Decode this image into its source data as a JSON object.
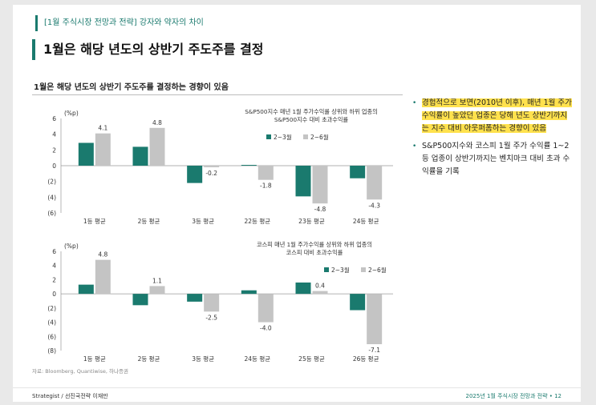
{
  "header": {
    "tag": "[1월 주식시장 전망과 전략]",
    "tag_sub": "강자와 약자의 차이",
    "title": "1월은 해당 년도의 상반기 주도주를 결정"
  },
  "subtitle": "1월은 해당 년도의 상반기 주도주를 결정하는 경향이 있음",
  "colors": {
    "accent": "#1a7a6e",
    "gray_bar": "#c4c4c4",
    "highlight": "#ffe14d"
  },
  "chart_data": [
    {
      "type": "bar",
      "unit": "(%p)",
      "title": "S&P500지수 매년 1월 주가수익률 상위와 하위 업종의\nS&P500지수 대비 초과수익률",
      "categories": [
        "1등 평균",
        "2등 평균",
        "3등 평균",
        "22등 평균",
        "23등 평균",
        "24등 평균"
      ],
      "series": [
        {
          "name": "2~3월",
          "values": [
            2.9,
            2.4,
            -2.2,
            0.1,
            -3.9,
            -1.6
          ]
        },
        {
          "name": "2~6월",
          "values": [
            4.1,
            4.8,
            -0.2,
            -1.8,
            -4.8,
            -4.3
          ]
        }
      ],
      "labels": [
        "4.1",
        "4.8",
        "-0.2",
        "-1.8",
        "-4.8",
        "-4.3"
      ],
      "yticks": [
        6,
        4,
        2,
        0,
        -2,
        -4,
        -6
      ],
      "ytick_labels": [
        "6",
        "4",
        "2",
        "0",
        "(2)",
        "(4)",
        "(6)"
      ],
      "ylim": [
        -6,
        6
      ],
      "legend": "top-right"
    },
    {
      "type": "bar",
      "unit": "(%p)",
      "title": "코스피 매년 1월 주가수익률 상위와 하위 업종의\n코스피 대비 초과수익률",
      "categories": [
        "1등 평균",
        "2등 평균",
        "3등 평균",
        "24등 평균",
        "25등 평균",
        "26등 평균"
      ],
      "series": [
        {
          "name": "2~3월",
          "values": [
            1.3,
            -1.6,
            -1.1,
            0.5,
            1.6,
            -2.3
          ]
        },
        {
          "name": "2~6월",
          "values": [
            4.8,
            1.1,
            -2.5,
            -4.0,
            0.4,
            -7.1
          ]
        }
      ],
      "labels": [
        "4.8",
        "1.1",
        "-2.5",
        "-4.0",
        "0.4",
        "-7.1"
      ],
      "yticks": [
        6,
        4,
        2,
        0,
        -2,
        -4,
        -6,
        -8
      ],
      "ytick_labels": [
        "6",
        "4",
        "2",
        "0",
        "(2)",
        "(4)",
        "(6)",
        "(8)"
      ],
      "ylim": [
        -8,
        6
      ],
      "legend": "top-right"
    }
  ],
  "source": "자료: Bloomberg, Quantiwise, 하나증권",
  "bullets": [
    {
      "text": "경험적으로 보면(2010년 이후), 매년 1월 주가 수익률이 높았던 업종은 당해 년도 상반기까지는 지수 대비 아웃퍼폼하는 경향이 있음",
      "highlight": true
    },
    {
      "text": "S&P500지수와 코스피 1월 주가 수익률 1~2등 업종이 상반기까지는 벤치마크 대비 초과 수익률을 기록",
      "highlight": false
    }
  ],
  "footer": {
    "left": "Strategist / 선진국전략 이재만",
    "right": "2025년 1월 주식시장 전망과 전략 • 12"
  }
}
